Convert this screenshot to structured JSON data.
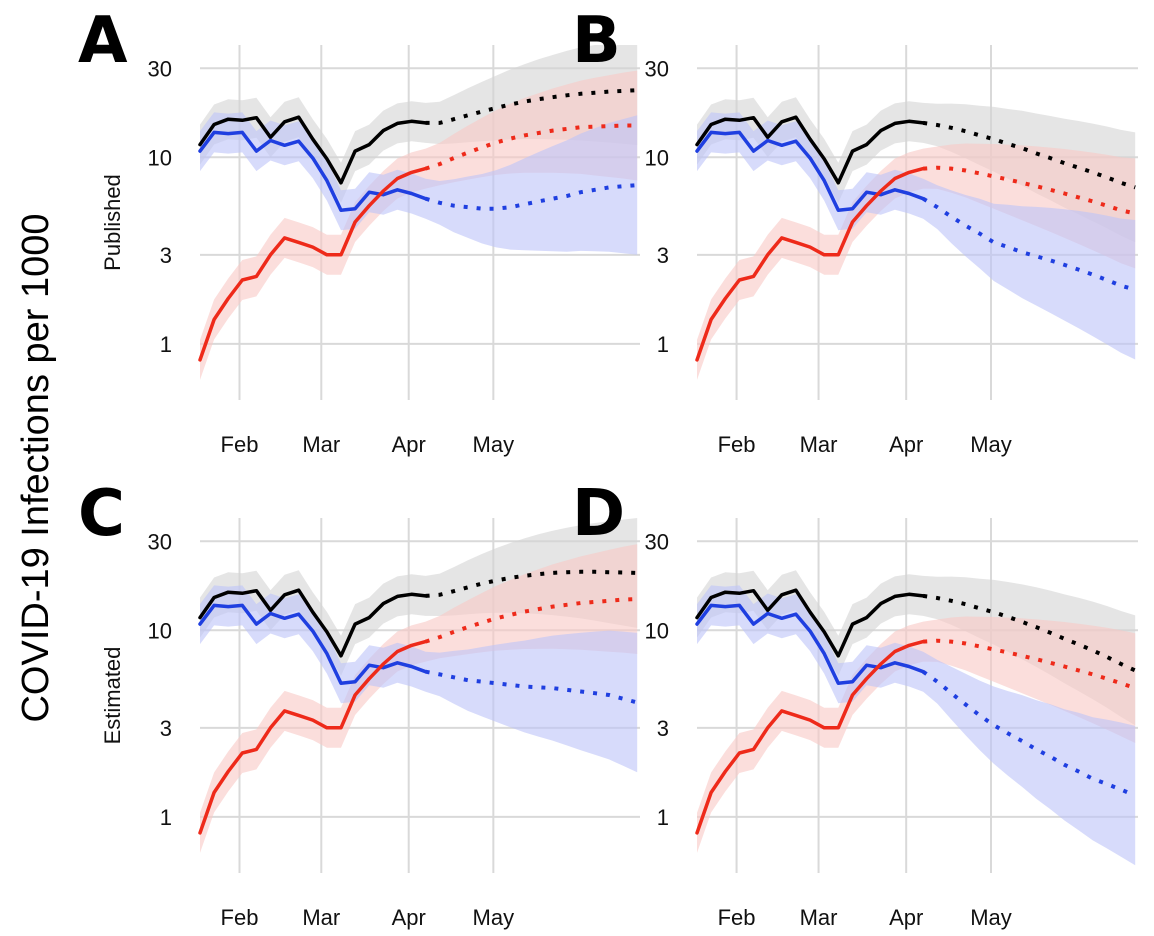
{
  "figure": {
    "ylabel": "COVID-19 Infections per 1000",
    "row_labels": [
      "Published",
      "Estimated"
    ],
    "x_ticks": [
      "Feb",
      "Mar",
      "Apr",
      "May"
    ],
    "y_ticks": [
      "1",
      "3",
      "10",
      "30"
    ],
    "colors": {
      "black_series": "#000000",
      "blue_series": "#1f3fe0",
      "red_series": "#ee2a1a",
      "black_band": "#d3d3d3",
      "blue_band": "#bcc3f8",
      "red_band": "#f9c8c4",
      "grid": "#d9d9d9"
    }
  },
  "chart_data": [
    {
      "type": "line",
      "panel": "A",
      "row_label": "Published",
      "y_scale": "log",
      "ylim": [
        0.5,
        40
      ],
      "y_ticks": [
        1,
        3,
        10,
        30
      ],
      "x_ticks": [
        "Feb",
        "Mar",
        "Apr",
        "May"
      ],
      "x_note": "x in days since Jan 1",
      "x": [
        17,
        22,
        27,
        32,
        37,
        42,
        47,
        52,
        57,
        62,
        67,
        72,
        77,
        82,
        87,
        92,
        97,
        102,
        107,
        112,
        117,
        122,
        127,
        132,
        137,
        142,
        147,
        152,
        157,
        162,
        167,
        172
      ],
      "observed_until": 100,
      "series": [
        {
          "color": "black",
          "values": [
            11.7,
            15.0,
            16.0,
            15.8,
            16.3,
            12.8,
            15.5,
            16.4,
            12.5,
            9.8,
            7.3,
            10.8,
            11.7,
            13.9,
            15.2,
            15.6,
            15.3,
            15.3,
            16.0,
            16.8,
            17.6,
            18.4,
            19.2,
            19.9,
            20.5,
            21.0,
            21.5,
            21.9,
            22.2,
            22.5,
            22.7,
            22.9
          ]
        },
        {
          "color": "blue",
          "values": [
            10.8,
            13.6,
            13.4,
            13.6,
            10.8,
            12.3,
            11.6,
            12.2,
            9.9,
            7.5,
            5.2,
            5.3,
            6.5,
            6.3,
            6.7,
            6.4,
            6.0,
            5.7,
            5.5,
            5.4,
            5.3,
            5.3,
            5.4,
            5.6,
            5.8,
            6.0,
            6.2,
            6.5,
            6.7,
            6.9,
            7.0,
            7.1
          ]
        },
        {
          "color": "red",
          "values": [
            0.82,
            1.35,
            1.75,
            2.2,
            2.3,
            3.0,
            3.7,
            3.5,
            3.3,
            3.0,
            3.0,
            4.5,
            5.5,
            6.6,
            7.7,
            8.3,
            8.7,
            9.2,
            9.9,
            10.6,
            11.3,
            12.0,
            12.6,
            13.1,
            13.5,
            13.9,
            14.2,
            14.5,
            14.6,
            14.7,
            14.8,
            14.8
          ]
        }
      ]
    },
    {
      "type": "line",
      "panel": "B",
      "row_label": "Published",
      "y_scale": "log",
      "ylim": [
        0.5,
        40
      ],
      "y_ticks": [
        1,
        3,
        10,
        30
      ],
      "x_ticks": [
        "Feb",
        "Mar",
        "Apr",
        "May"
      ],
      "x_note": "x in days since Jan 1",
      "x": [
        17,
        22,
        27,
        32,
        37,
        42,
        47,
        52,
        57,
        62,
        67,
        72,
        77,
        82,
        87,
        92,
        97,
        102,
        107,
        112,
        117,
        122,
        127,
        132,
        137,
        142,
        147,
        152,
        157,
        162,
        167,
        172
      ],
      "observed_until": 100,
      "series": [
        {
          "color": "black",
          "values": [
            11.7,
            15.0,
            16.0,
            15.8,
            16.3,
            12.8,
            15.5,
            16.4,
            12.5,
            9.8,
            7.3,
            10.8,
            11.7,
            13.9,
            15.2,
            15.6,
            15.3,
            14.9,
            14.4,
            13.8,
            13.1,
            12.5,
            11.8,
            11.2,
            10.5,
            9.9,
            9.3,
            8.8,
            8.3,
            7.8,
            7.3,
            6.9
          ]
        },
        {
          "color": "blue",
          "values": [
            10.8,
            13.6,
            13.4,
            13.6,
            10.8,
            12.3,
            11.6,
            12.2,
            9.9,
            7.5,
            5.2,
            5.3,
            6.5,
            6.3,
            6.7,
            6.4,
            6.0,
            5.4,
            4.8,
            4.3,
            3.9,
            3.5,
            3.3,
            3.1,
            2.95,
            2.8,
            2.65,
            2.5,
            2.35,
            2.2,
            2.05,
            1.95
          ]
        },
        {
          "color": "red",
          "values": [
            0.82,
            1.35,
            1.75,
            2.2,
            2.3,
            3.0,
            3.7,
            3.5,
            3.3,
            3.0,
            3.0,
            4.5,
            5.5,
            6.6,
            7.7,
            8.3,
            8.7,
            8.8,
            8.7,
            8.5,
            8.2,
            7.9,
            7.6,
            7.3,
            7.0,
            6.7,
            6.4,
            6.1,
            5.8,
            5.5,
            5.2,
            5.0
          ]
        }
      ]
    },
    {
      "type": "line",
      "panel": "C",
      "row_label": "Estimated",
      "y_scale": "log",
      "ylim": [
        0.5,
        40
      ],
      "y_ticks": [
        1,
        3,
        10,
        30
      ],
      "x_ticks": [
        "Feb",
        "Mar",
        "Apr",
        "May"
      ],
      "x_note": "x in days since Jan 1",
      "x": [
        17,
        22,
        27,
        32,
        37,
        42,
        47,
        52,
        57,
        62,
        67,
        72,
        77,
        82,
        87,
        92,
        97,
        102,
        107,
        112,
        117,
        122,
        127,
        132,
        137,
        142,
        147,
        152,
        157,
        162,
        167,
        172
      ],
      "observed_until": 100,
      "series": [
        {
          "color": "black",
          "values": [
            11.7,
            15.0,
            16.0,
            15.8,
            16.3,
            12.8,
            15.5,
            16.4,
            12.5,
            9.8,
            7.3,
            10.8,
            11.7,
            13.9,
            15.2,
            15.6,
            15.3,
            15.5,
            16.2,
            17.0,
            17.8,
            18.5,
            19.1,
            19.6,
            20.0,
            20.3,
            20.5,
            20.6,
            20.6,
            20.5,
            20.4,
            20.3
          ]
        },
        {
          "color": "blue",
          "values": [
            10.8,
            13.6,
            13.4,
            13.6,
            10.8,
            12.3,
            11.6,
            12.2,
            9.9,
            7.5,
            5.2,
            5.3,
            6.5,
            6.3,
            6.7,
            6.4,
            6.0,
            5.8,
            5.6,
            5.4,
            5.3,
            5.2,
            5.1,
            5.0,
            4.95,
            4.9,
            4.8,
            4.7,
            4.6,
            4.5,
            4.3,
            4.1
          ]
        },
        {
          "color": "red",
          "values": [
            0.82,
            1.35,
            1.75,
            2.2,
            2.3,
            3.0,
            3.7,
            3.5,
            3.3,
            3.0,
            3.0,
            4.5,
            5.5,
            6.6,
            7.7,
            8.3,
            8.7,
            9.2,
            9.8,
            10.4,
            11.0,
            11.6,
            12.1,
            12.6,
            13.0,
            13.4,
            13.7,
            14.0,
            14.2,
            14.4,
            14.6,
            14.7
          ]
        }
      ]
    },
    {
      "type": "line",
      "panel": "D",
      "row_label": "Estimated",
      "y_scale": "log",
      "ylim": [
        0.5,
        40
      ],
      "y_ticks": [
        1,
        3,
        10,
        30
      ],
      "x_ticks": [
        "Feb",
        "Mar",
        "Apr",
        "May"
      ],
      "x_note": "x in days since Jan 1",
      "x": [
        17,
        22,
        27,
        32,
        37,
        42,
        47,
        52,
        57,
        62,
        67,
        72,
        77,
        82,
        87,
        92,
        97,
        102,
        107,
        112,
        117,
        122,
        127,
        132,
        137,
        142,
        147,
        152,
        157,
        162,
        167,
        172
      ],
      "observed_until": 100,
      "series": [
        {
          "color": "black",
          "values": [
            11.7,
            15.0,
            16.0,
            15.8,
            16.3,
            12.8,
            15.5,
            16.4,
            12.5,
            9.8,
            7.3,
            10.8,
            11.7,
            13.9,
            15.2,
            15.6,
            15.3,
            14.9,
            14.4,
            13.8,
            13.1,
            12.5,
            11.8,
            11.1,
            10.4,
            9.7,
            9.0,
            8.4,
            7.8,
            7.2,
            6.6,
            6.1
          ]
        },
        {
          "color": "blue",
          "values": [
            10.8,
            13.6,
            13.4,
            13.6,
            10.8,
            12.3,
            11.6,
            12.2,
            9.9,
            7.5,
            5.2,
            5.3,
            6.5,
            6.3,
            6.7,
            6.4,
            6.0,
            5.3,
            4.6,
            4.0,
            3.5,
            3.1,
            2.8,
            2.55,
            2.3,
            2.1,
            1.9,
            1.75,
            1.6,
            1.5,
            1.4,
            1.3
          ]
        },
        {
          "color": "red",
          "values": [
            0.82,
            1.35,
            1.75,
            2.2,
            2.3,
            3.0,
            3.7,
            3.5,
            3.3,
            3.0,
            3.0,
            4.5,
            5.5,
            6.6,
            7.7,
            8.3,
            8.7,
            8.8,
            8.7,
            8.5,
            8.2,
            7.9,
            7.6,
            7.3,
            7.0,
            6.7,
            6.4,
            6.1,
            5.8,
            5.5,
            5.2,
            4.9
          ]
        }
      ]
    }
  ]
}
